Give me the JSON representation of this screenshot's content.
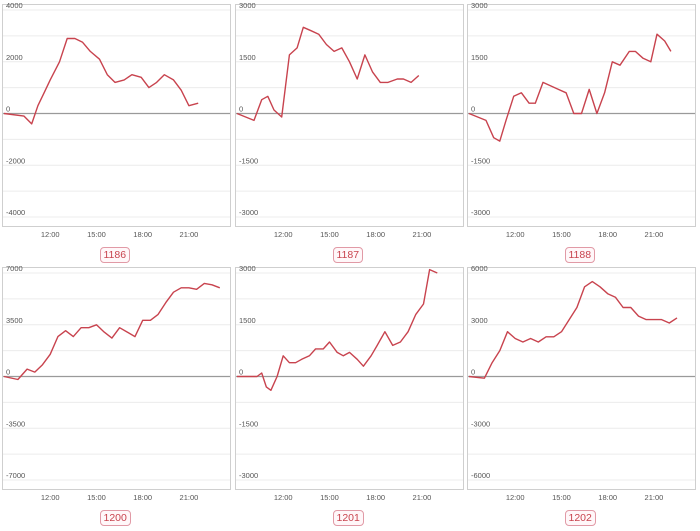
{
  "panels": [
    {
      "label": "1186"
    },
    {
      "label": "1187"
    },
    {
      "label": "1188"
    },
    {
      "label": "1200"
    },
    {
      "label": "1201"
    },
    {
      "label": "1202"
    }
  ],
  "chart_data": [
    {
      "type": "line",
      "title": "1186",
      "x_ticks": [
        "12:00",
        "15:00",
        "18:00",
        "21:00"
      ],
      "y_ticks": [
        4000,
        2000,
        0,
        -2000,
        -4000
      ],
      "ylim": [
        -4000,
        4000
      ],
      "xlim": [
        9.0,
        23.6
      ],
      "x": [
        9.0,
        10.3,
        10.8,
        11.2,
        11.6,
        12.0,
        12.6,
        13.1,
        13.6,
        14.1,
        14.6,
        15.2,
        15.7,
        16.2,
        16.8,
        17.3,
        17.9,
        18.4,
        18.9,
        19.4,
        20.0,
        20.5,
        21.0,
        21.6
      ],
      "y": [
        0,
        -100,
        -400,
        300,
        800,
        1300,
        2000,
        2900,
        2900,
        2750,
        2400,
        2100,
        1500,
        1200,
        1300,
        1500,
        1400,
        1000,
        1200,
        1500,
        1300,
        900,
        300,
        400
      ],
      "grid": true
    },
    {
      "type": "line",
      "title": "1187",
      "x_ticks": [
        "12:00",
        "15:00",
        "18:00",
        "21:00"
      ],
      "y_ticks": [
        3000,
        1500,
        0,
        -1500,
        -3000
      ],
      "ylim": [
        -3000,
        3000
      ],
      "xlim": [
        9.0,
        23.6
      ],
      "x": [
        9.0,
        10.1,
        10.6,
        11.0,
        11.4,
        11.9,
        12.4,
        12.9,
        13.3,
        13.8,
        14.3,
        14.8,
        15.3,
        15.8,
        16.3,
        16.8,
        17.3,
        17.8,
        18.3,
        18.8,
        19.4,
        19.8,
        20.3,
        20.8
      ],
      "y": [
        0,
        -200,
        400,
        500,
        100,
        -100,
        1700,
        1900,
        2500,
        2400,
        2300,
        2000,
        1800,
        1900,
        1500,
        1000,
        1700,
        1200,
        900,
        900,
        1000,
        1000,
        900,
        1100
      ],
      "grid": true
    },
    {
      "type": "line",
      "title": "1188",
      "x_ticks": [
        "12:00",
        "15:00",
        "18:00",
        "21:00"
      ],
      "y_ticks": [
        3000,
        1500,
        0,
        -1500,
        -3000
      ],
      "ylim": [
        -3000,
        3000
      ],
      "xlim": [
        9.0,
        23.6
      ],
      "x": [
        9.0,
        10.1,
        10.6,
        11.0,
        11.4,
        11.9,
        12.4,
        12.9,
        13.3,
        13.8,
        14.3,
        14.8,
        15.3,
        15.8,
        16.3,
        16.8,
        17.3,
        17.8,
        18.3,
        18.8,
        19.4,
        19.8,
        20.3,
        20.8,
        21.2,
        21.7,
        22.1
      ],
      "y": [
        0,
        -200,
        -700,
        -800,
        -200,
        500,
        600,
        300,
        300,
        900,
        800,
        700,
        600,
        0,
        0,
        700,
        0,
        600,
        1500,
        1400,
        1800,
        1800,
        1600,
        1500,
        2300,
        2100,
        1800
      ],
      "grid": true
    },
    {
      "type": "line",
      "title": "1200",
      "x_ticks": [
        "12:00",
        "15:00",
        "18:00",
        "21:00"
      ],
      "y_ticks": [
        7000,
        3500,
        0,
        -3500,
        -7000
      ],
      "ylim": [
        -7000,
        7000
      ],
      "xlim": [
        9.0,
        23.6
      ],
      "x": [
        9.0,
        9.9,
        10.5,
        11.0,
        11.5,
        12.0,
        12.5,
        13.0,
        13.5,
        14.0,
        14.5,
        15.0,
        15.5,
        16.0,
        16.5,
        17.0,
        17.5,
        18.0,
        18.5,
        19.0,
        19.5,
        20.0,
        20.5,
        21.0,
        21.5,
        22.0,
        22.5,
        23.0
      ],
      "y": [
        0,
        -200,
        500,
        300,
        800,
        1500,
        2700,
        3100,
        2700,
        3300,
        3300,
        3500,
        3000,
        2600,
        3300,
        3000,
        2700,
        3800,
        3800,
        4200,
        5000,
        5700,
        6000,
        6000,
        5900,
        6300,
        6200,
        6000
      ],
      "grid": true
    },
    {
      "type": "line",
      "title": "1201",
      "x_ticks": [
        "12:00",
        "15:00",
        "18:00",
        "21:00"
      ],
      "y_ticks": [
        3000,
        1500,
        0,
        -1500,
        -3000
      ],
      "ylim": [
        -3000,
        3000
      ],
      "xlim": [
        9.0,
        23.6
      ],
      "x": [
        9.0,
        9.8,
        10.3,
        10.6,
        10.9,
        11.2,
        11.6,
        12.0,
        12.4,
        12.8,
        13.2,
        13.7,
        14.1,
        14.6,
        15.0,
        15.5,
        15.9,
        16.3,
        16.8,
        17.2,
        17.7,
        18.1,
        18.6,
        19.1,
        19.6,
        20.1,
        20.6,
        21.1,
        21.5,
        22.0
      ],
      "y": [
        0,
        0,
        0,
        100,
        -300,
        -400,
        0,
        600,
        400,
        400,
        500,
        600,
        800,
        800,
        1000,
        700,
        600,
        700,
        500,
        300,
        600,
        900,
        1300,
        900,
        1000,
        1300,
        1800,
        2100,
        3100,
        3000
      ],
      "grid": true
    },
    {
      "type": "line",
      "title": "1202",
      "x_ticks": [
        "12:00",
        "15:00",
        "18:00",
        "21:00"
      ],
      "y_ticks": [
        6000,
        3000,
        0,
        -3000,
        -6000
      ],
      "ylim": [
        -6000,
        6000
      ],
      "xlim": [
        9.0,
        23.6
      ],
      "x": [
        9.0,
        10.0,
        10.5,
        11.0,
        11.5,
        12.0,
        12.5,
        13.0,
        13.5,
        14.0,
        14.5,
        15.0,
        15.5,
        16.0,
        16.5,
        17.0,
        17.5,
        18.0,
        18.5,
        19.0,
        19.5,
        20.0,
        20.5,
        21.0,
        21.5,
        22.0,
        22.5
      ],
      "y": [
        0,
        -100,
        800,
        1500,
        2600,
        2200,
        2000,
        2200,
        2000,
        2300,
        2300,
        2600,
        3300,
        4000,
        5200,
        5500,
        5200,
        4800,
        4600,
        4000,
        4000,
        3500,
        3300,
        3300,
        3300,
        3100,
        3400
      ],
      "grid": true
    }
  ]
}
